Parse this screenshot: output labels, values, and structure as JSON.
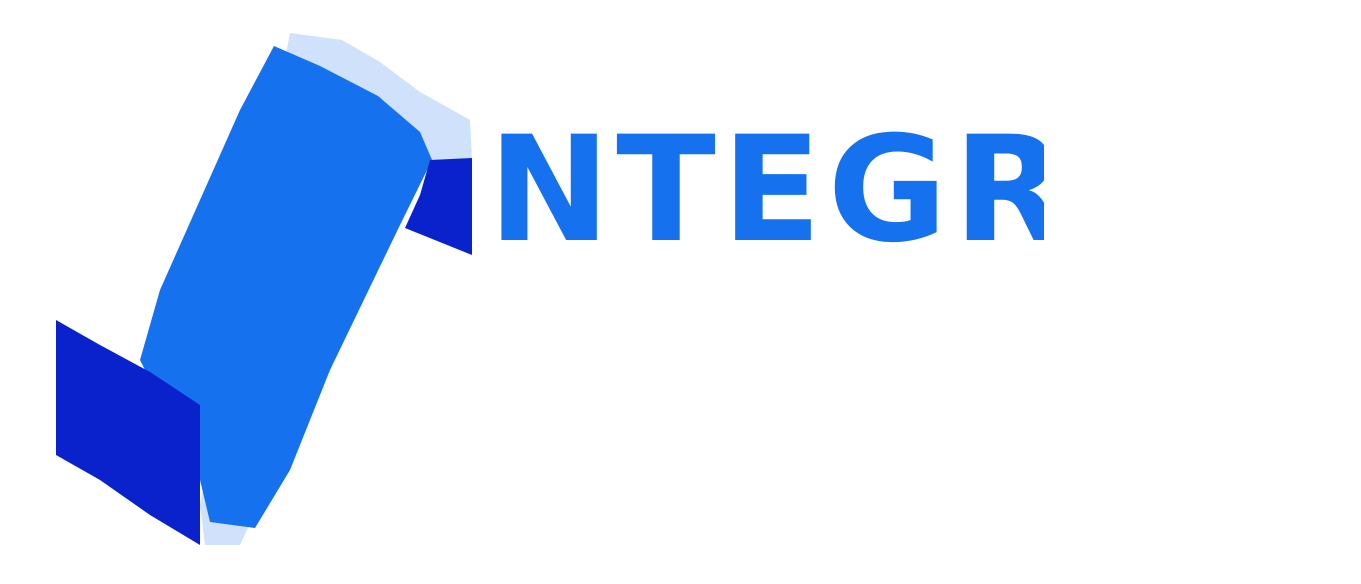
{
  "brand": {
    "name": "NTEGRA"
  },
  "colors": {
    "primary": "#1571ee",
    "dark": "#0a22cc",
    "light": "#cfe1fb"
  },
  "icons": {
    "logo": "stylized-i-book-icon"
  }
}
